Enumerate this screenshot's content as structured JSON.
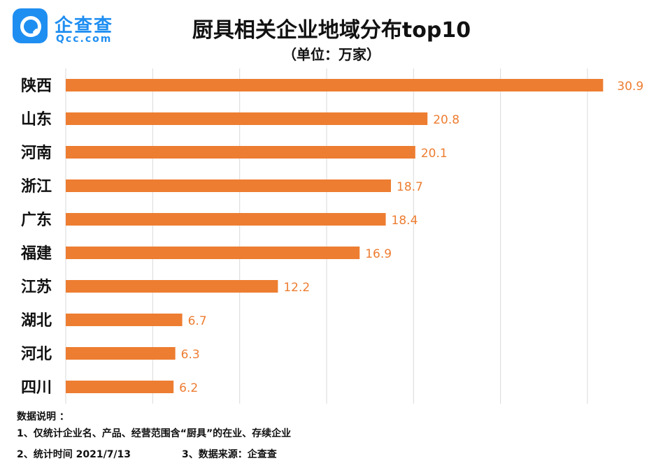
{
  "logo": {
    "name": "企查查",
    "domain": "Qcc.com",
    "color": "#1f8ef1"
  },
  "title": "厨具相关企业地域分布top10",
  "subtitle": "（单位：万家）",
  "chart_data": {
    "type": "bar",
    "orientation": "horizontal",
    "categories": [
      "陕西",
      "山东",
      "河南",
      "浙江",
      "广东",
      "福建",
      "江苏",
      "湖北",
      "河北",
      "四川"
    ],
    "values": [
      30.9,
      20.8,
      20.1,
      18.7,
      18.4,
      16.9,
      12.2,
      6.7,
      6.3,
      6.2
    ],
    "xlim": [
      0,
      30
    ],
    "grid": true,
    "bar_color": "#ed7d31",
    "label_color": "#ed7d31"
  },
  "notes": {
    "header": "数据说明 ：",
    "item1": "1、仅统计企业名、产品、经营范围含“厨具”的在业、存续企业",
    "item2": "2、统计时间 2021/7/13",
    "item3": "3、数据来源：企查查"
  }
}
